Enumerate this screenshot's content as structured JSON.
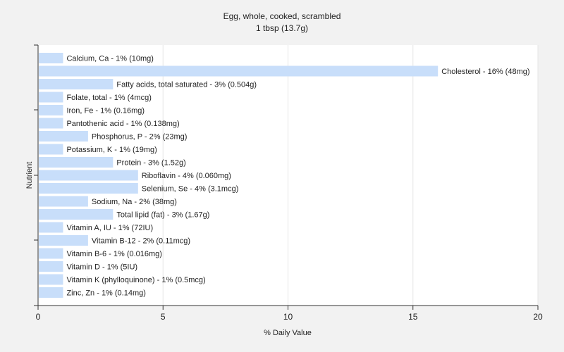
{
  "chart_data": {
    "type": "bar",
    "orientation": "horizontal",
    "title": "Egg, whole, cooked, scrambled",
    "subtitle": "1 tbsp (13.7g)",
    "xlabel": "% Daily Value",
    "ylabel": "Nutrient",
    "xlim": [
      0,
      20
    ],
    "xticks": [
      0,
      5,
      10,
      15,
      20
    ],
    "grid": true,
    "bar_color": "#c8defa",
    "categories": [
      "Calcium, Ca",
      "Cholesterol",
      "Fatty acids, total saturated",
      "Folate, total",
      "Iron, Fe",
      "Pantothenic acid",
      "Phosphorus, P",
      "Potassium, K",
      "Protein",
      "Riboflavin",
      "Selenium, Se",
      "Sodium, Na",
      "Total lipid (fat)",
      "Vitamin A, IU",
      "Vitamin B-12",
      "Vitamin B-6",
      "Vitamin D",
      "Vitamin K (phylloquinone)",
      "Zinc, Zn"
    ],
    "values": [
      1,
      16,
      3,
      1,
      1,
      1,
      2,
      1,
      3,
      4,
      4,
      2,
      3,
      1,
      2,
      1,
      1,
      1,
      1
    ],
    "labels": [
      "Calcium, Ca - 1% (10mg)",
      "Cholesterol - 16% (48mg)",
      "Fatty acids, total saturated - 3% (0.504g)",
      "Folate, total - 1% (4mcg)",
      "Iron, Fe - 1% (0.16mg)",
      "Pantothenic acid - 1% (0.138mg)",
      "Phosphorus, P - 2% (23mg)",
      "Potassium, K - 1% (19mg)",
      "Protein - 3% (1.52g)",
      "Riboflavin - 4% (0.060mg)",
      "Selenium, Se - 4% (3.1mcg)",
      "Sodium, Na - 2% (38mg)",
      "Total lipid (fat) - 3% (1.67g)",
      "Vitamin A, IU - 1% (72IU)",
      "Vitamin B-12 - 2% (0.11mcg)",
      "Vitamin B-6 - 1% (0.016mg)",
      "Vitamin D - 1% (5IU)",
      "Vitamin K (phylloquinone) - 1% (0.5mcg)",
      "Zinc, Zn - 1% (0.14mg)"
    ]
  }
}
